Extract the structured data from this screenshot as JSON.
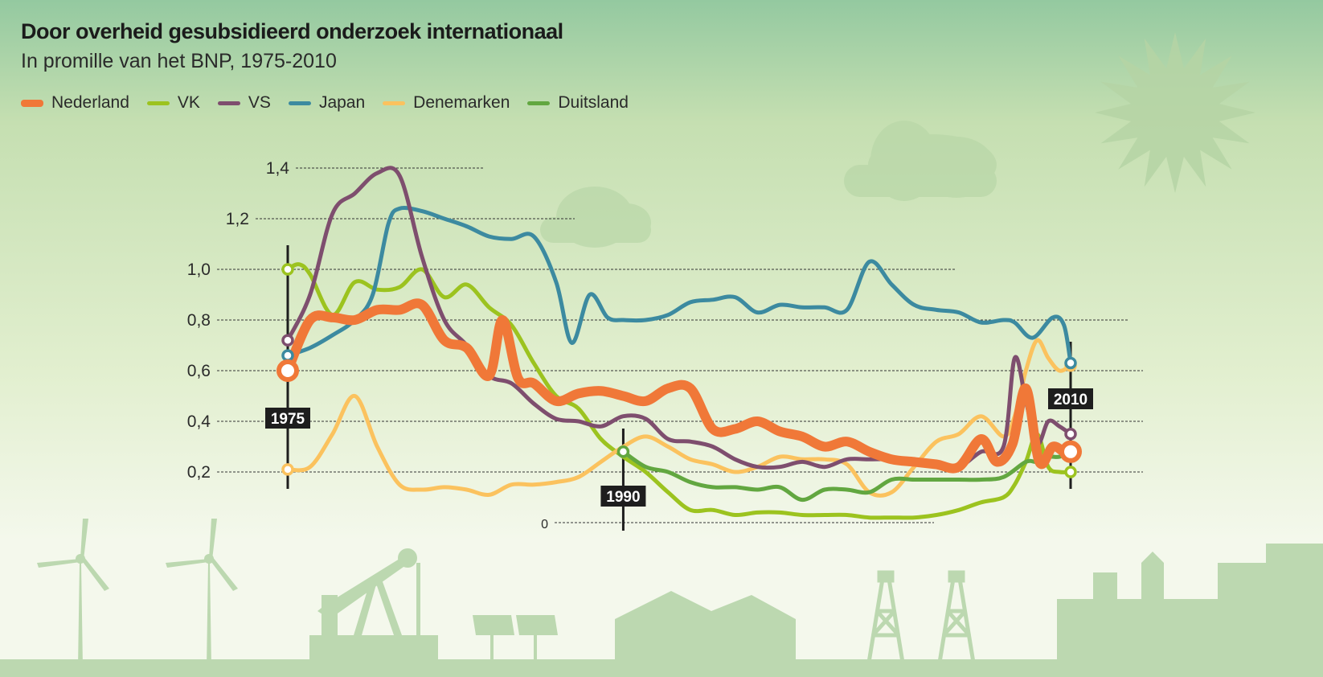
{
  "chart_data": {
    "type": "line",
    "title": "Door overheid gesubsidieerd onderzoek internationaal",
    "subtitle": "In promille van het BNP, 1975-2010",
    "xlabel": "",
    "ylabel": "",
    "xlim": [
      1975,
      2010
    ],
    "ylim": [
      0,
      1.4
    ],
    "y_ticks": [
      {
        "value": 0,
        "label": "0"
      },
      {
        "value": 0.2,
        "label": "0,2"
      },
      {
        "value": 0.4,
        "label": "0,4"
      },
      {
        "value": 0.6,
        "label": "0,6"
      },
      {
        "value": 0.8,
        "label": "0,8"
      },
      {
        "value": 1.0,
        "label": "1,0"
      },
      {
        "value": 1.2,
        "label": "1,2"
      },
      {
        "value": 1.4,
        "label": "1,4"
      }
    ],
    "year_markers": [
      {
        "year": 1975,
        "label": "1975"
      },
      {
        "year": 1990,
        "label": "1990"
      },
      {
        "year": 2010,
        "label": "2010"
      }
    ],
    "grid": true,
    "legend_position": "top-left",
    "series": [
      {
        "name": "VK",
        "color": "#9cc31f",
        "points": [
          [
            1975,
            1.0
          ],
          [
            1975.5,
            1.02
          ],
          [
            1976,
            0.98
          ],
          [
            1977,
            0.82
          ],
          [
            1978,
            0.95
          ],
          [
            1979,
            0.92
          ],
          [
            1980,
            0.93
          ],
          [
            1981,
            1.0
          ],
          [
            1982,
            0.89
          ],
          [
            1983,
            0.94
          ],
          [
            1984,
            0.85
          ],
          [
            1985,
            0.78
          ],
          [
            1986,
            0.63
          ],
          [
            1987,
            0.5
          ],
          [
            1988,
            0.45
          ],
          [
            1989,
            0.33
          ],
          [
            1990,
            0.26
          ],
          [
            1991,
            0.2
          ],
          [
            1992,
            0.12
          ],
          [
            1993,
            0.05
          ],
          [
            1994,
            0.05
          ],
          [
            1995,
            0.03
          ],
          [
            1996,
            0.04
          ],
          [
            1997,
            0.04
          ],
          [
            1998,
            0.03
          ],
          [
            1999,
            0.03
          ],
          [
            2000,
            0.03
          ],
          [
            2001,
            0.02
          ],
          [
            2002,
            0.02
          ],
          [
            2003,
            0.02
          ],
          [
            2004,
            0.03
          ],
          [
            2005,
            0.05
          ],
          [
            2006,
            0.08
          ],
          [
            2007,
            0.1
          ],
          [
            2007.5,
            0.15
          ],
          [
            2008,
            0.24
          ],
          [
            2008.5,
            0.35
          ],
          [
            2009,
            0.22
          ],
          [
            2009.5,
            0.2
          ],
          [
            2010,
            0.2
          ]
        ]
      },
      {
        "name": "Denemarken",
        "color": "#fbc25e",
        "points": [
          [
            1975,
            0.21
          ],
          [
            1976,
            0.22
          ],
          [
            1977,
            0.35
          ],
          [
            1978,
            0.5
          ],
          [
            1979,
            0.3
          ],
          [
            1980,
            0.15
          ],
          [
            1981,
            0.13
          ],
          [
            1982,
            0.14
          ],
          [
            1983,
            0.13
          ],
          [
            1984,
            0.11
          ],
          [
            1985,
            0.15
          ],
          [
            1986,
            0.15
          ],
          [
            1987,
            0.16
          ],
          [
            1988,
            0.18
          ],
          [
            1989,
            0.24
          ],
          [
            1990,
            0.3
          ],
          [
            1991,
            0.34
          ],
          [
            1992,
            0.3
          ],
          [
            1993,
            0.25
          ],
          [
            1994,
            0.23
          ],
          [
            1995,
            0.2
          ],
          [
            1996,
            0.22
          ],
          [
            1997,
            0.26
          ],
          [
            1998,
            0.25
          ],
          [
            1999,
            0.25
          ],
          [
            2000,
            0.23
          ],
          [
            2001,
            0.12
          ],
          [
            2002,
            0.12
          ],
          [
            2003,
            0.22
          ],
          [
            2004,
            0.32
          ],
          [
            2005,
            0.35
          ],
          [
            2006,
            0.42
          ],
          [
            2007,
            0.34
          ],
          [
            2007.5,
            0.42
          ],
          [
            2008,
            0.6
          ],
          [
            2008.5,
            0.72
          ],
          [
            2009,
            0.65
          ],
          [
            2009.5,
            0.6
          ],
          [
            2010,
            0.62
          ]
        ]
      },
      {
        "name": "Duitsland",
        "color": "#62a740",
        "points": [
          [
            1990,
            0.28
          ],
          [
            1991,
            0.22
          ],
          [
            1992,
            0.2
          ],
          [
            1993,
            0.16
          ],
          [
            1994,
            0.14
          ],
          [
            1995,
            0.14
          ],
          [
            1996,
            0.13
          ],
          [
            1997,
            0.14
          ],
          [
            1998,
            0.09
          ],
          [
            1999,
            0.13
          ],
          [
            2000,
            0.13
          ],
          [
            2001,
            0.12
          ],
          [
            2002,
            0.17
          ],
          [
            2003,
            0.17
          ],
          [
            2004,
            0.17
          ],
          [
            2005,
            0.17
          ],
          [
            2006,
            0.17
          ],
          [
            2007,
            0.18
          ],
          [
            2008,
            0.24
          ],
          [
            2008.5,
            0.24
          ],
          [
            2009,
            0.26
          ],
          [
            2009.5,
            0.26
          ],
          [
            2010,
            0.28
          ]
        ]
      },
      {
        "name": "Japan",
        "color": "#3c8aa0",
        "points": [
          [
            1975,
            0.66
          ],
          [
            1976,
            0.69
          ],
          [
            1977,
            0.74
          ],
          [
            1978,
            0.8
          ],
          [
            1978.8,
            0.9
          ],
          [
            1979.5,
            1.18
          ],
          [
            1980,
            1.24
          ],
          [
            1981,
            1.23
          ],
          [
            1982,
            1.2
          ],
          [
            1983,
            1.17
          ],
          [
            1984,
            1.13
          ],
          [
            1985,
            1.12
          ],
          [
            1986,
            1.13
          ],
          [
            1987,
            0.95
          ],
          [
            1987.7,
            0.71
          ],
          [
            1988.5,
            0.9
          ],
          [
            1989.3,
            0.81
          ],
          [
            1990,
            0.8
          ],
          [
            1991,
            0.8
          ],
          [
            1992,
            0.82
          ],
          [
            1993,
            0.87
          ],
          [
            1994,
            0.88
          ],
          [
            1995,
            0.89
          ],
          [
            1996,
            0.83
          ],
          [
            1997,
            0.86
          ],
          [
            1998,
            0.85
          ],
          [
            1999,
            0.85
          ],
          [
            2000,
            0.84
          ],
          [
            2001,
            1.03
          ],
          [
            2002,
            0.94
          ],
          [
            2003,
            0.86
          ],
          [
            2004,
            0.84
          ],
          [
            2005,
            0.83
          ],
          [
            2006,
            0.79
          ],
          [
            2007,
            0.8
          ],
          [
            2007.5,
            0.79
          ],
          [
            2008.3,
            0.73
          ],
          [
            2009.2,
            0.81
          ],
          [
            2009.7,
            0.78
          ],
          [
            2010,
            0.63
          ]
        ]
      },
      {
        "name": "VS",
        "color": "#7e4e6e",
        "points": [
          [
            1975,
            0.72
          ],
          [
            1976,
            0.9
          ],
          [
            1977,
            1.22
          ],
          [
            1978,
            1.3
          ],
          [
            1979,
            1.38
          ],
          [
            1980,
            1.37
          ],
          [
            1981,
            1.05
          ],
          [
            1982,
            0.8
          ],
          [
            1983,
            0.7
          ],
          [
            1984,
            0.58
          ],
          [
            1985,
            0.55
          ],
          [
            1986,
            0.47
          ],
          [
            1987,
            0.41
          ],
          [
            1988,
            0.4
          ],
          [
            1989,
            0.38
          ],
          [
            1990,
            0.42
          ],
          [
            1991,
            0.41
          ],
          [
            1992,
            0.33
          ],
          [
            1993,
            0.32
          ],
          [
            1994,
            0.3
          ],
          [
            1995,
            0.25
          ],
          [
            1996,
            0.22
          ],
          [
            1997,
            0.22
          ],
          [
            1998,
            0.24
          ],
          [
            1999,
            0.22
          ],
          [
            2000,
            0.25
          ],
          [
            2001,
            0.25
          ],
          [
            2002,
            0.25
          ],
          [
            2003,
            0.24
          ],
          [
            2004,
            0.24
          ],
          [
            2005,
            0.22
          ],
          [
            2006,
            0.28
          ],
          [
            2007,
            0.3
          ],
          [
            2007.5,
            0.65
          ],
          [
            2008,
            0.48
          ],
          [
            2008.5,
            0.31
          ],
          [
            2009,
            0.4
          ],
          [
            2009.5,
            0.38
          ],
          [
            2010,
            0.35
          ]
        ]
      },
      {
        "name": "Nederland",
        "color": "#f07838",
        "points": [
          [
            1975,
            0.6
          ],
          [
            1976,
            0.8
          ],
          [
            1977,
            0.81
          ],
          [
            1978,
            0.8
          ],
          [
            1979,
            0.84
          ],
          [
            1980,
            0.84
          ],
          [
            1981,
            0.86
          ],
          [
            1982,
            0.72
          ],
          [
            1983,
            0.69
          ],
          [
            1984,
            0.58
          ],
          [
            1984.6,
            0.8
          ],
          [
            1985.3,
            0.57
          ],
          [
            1986,
            0.55
          ],
          [
            1987,
            0.48
          ],
          [
            1988,
            0.51
          ],
          [
            1989,
            0.52
          ],
          [
            1990,
            0.5
          ],
          [
            1991,
            0.48
          ],
          [
            1992,
            0.53
          ],
          [
            1993,
            0.53
          ],
          [
            1994,
            0.37
          ],
          [
            1995,
            0.37
          ],
          [
            1996,
            0.4
          ],
          [
            1997,
            0.36
          ],
          [
            1998,
            0.34
          ],
          [
            1999,
            0.3
          ],
          [
            2000,
            0.32
          ],
          [
            2001,
            0.28
          ],
          [
            2002,
            0.25
          ],
          [
            2003,
            0.24
          ],
          [
            2004,
            0.23
          ],
          [
            2005,
            0.22
          ],
          [
            2006,
            0.33
          ],
          [
            2006.7,
            0.24
          ],
          [
            2007.4,
            0.31
          ],
          [
            2008,
            0.53
          ],
          [
            2008.6,
            0.24
          ],
          [
            2009.2,
            0.3
          ],
          [
            2009.7,
            0.28
          ],
          [
            2010,
            0.28
          ]
        ]
      }
    ]
  },
  "legend": [
    {
      "label": "Nederland",
      "color": "#f07838",
      "thickness": 9
    },
    {
      "label": "VK",
      "color": "#9cc31f",
      "thickness": 5
    },
    {
      "label": "VS",
      "color": "#7e4e6e",
      "thickness": 5
    },
    {
      "label": "Japan",
      "color": "#3c8aa0",
      "thickness": 5
    },
    {
      "label": "Denemarken",
      "color": "#fbc25e",
      "thickness": 5
    },
    {
      "label": "Duitsland",
      "color": "#62a740",
      "thickness": 5
    }
  ],
  "decorations": {
    "silhouette_color": "#bcd8b0",
    "sky_shape_color": "#b5d3a5",
    "icons": [
      "sun-icon",
      "cloud-icon",
      "wind-turbine-icon",
      "oil-pump-icon",
      "solar-panel-icon",
      "house-icon",
      "oil-derrick-icon",
      "factory-icon"
    ]
  }
}
